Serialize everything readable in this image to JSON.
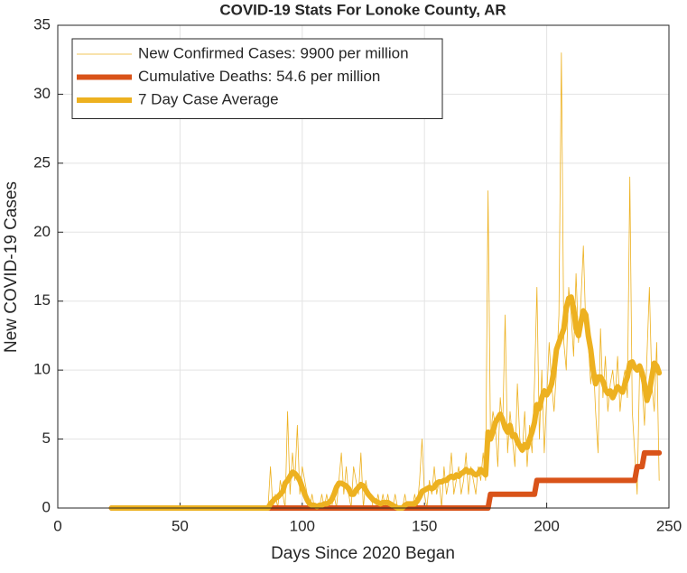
{
  "chart_data": {
    "type": "line",
    "title": "COVID-19 Stats For Lonoke County, AR",
    "xlabel": "Days Since 2020 Began",
    "ylabel": "New COVID-19 Cases",
    "xlim": [
      0,
      250
    ],
    "xticks": [
      0,
      50,
      100,
      150,
      200,
      250
    ],
    "ylim": [
      0,
      35
    ],
    "yticks": [
      0,
      5,
      10,
      15,
      20,
      25,
      30,
      35
    ],
    "grid": true,
    "legend": "upper-left",
    "x": [
      22,
      23,
      24,
      25,
      26,
      27,
      28,
      29,
      30,
      31,
      32,
      33,
      34,
      35,
      36,
      37,
      38,
      39,
      40,
      41,
      42,
      43,
      44,
      45,
      46,
      47,
      48,
      49,
      50,
      51,
      52,
      53,
      54,
      55,
      56,
      57,
      58,
      59,
      60,
      61,
      62,
      63,
      64,
      65,
      66,
      67,
      68,
      69,
      70,
      71,
      72,
      73,
      74,
      75,
      76,
      77,
      78,
      79,
      80,
      81,
      82,
      83,
      84,
      85,
      86,
      87,
      88,
      89,
      90,
      91,
      92,
      93,
      94,
      95,
      96,
      97,
      98,
      99,
      100,
      101,
      102,
      103,
      104,
      105,
      106,
      107,
      108,
      109,
      110,
      111,
      112,
      113,
      114,
      115,
      116,
      117,
      118,
      119,
      120,
      121,
      122,
      123,
      124,
      125,
      126,
      127,
      128,
      129,
      130,
      131,
      132,
      133,
      134,
      135,
      136,
      137,
      138,
      139,
      140,
      141,
      142,
      143,
      144,
      145,
      146,
      147,
      148,
      149,
      150,
      151,
      152,
      153,
      154,
      155,
      156,
      157,
      158,
      159,
      160,
      161,
      162,
      163,
      164,
      165,
      166,
      167,
      168,
      169,
      170,
      171,
      172,
      173,
      174,
      175,
      176,
      177,
      178,
      179,
      180,
      181,
      182,
      183,
      184,
      185,
      186,
      187,
      188,
      189,
      190,
      191,
      192,
      193,
      194,
      195,
      196,
      197,
      198,
      199,
      200,
      201,
      202,
      203,
      204,
      205,
      206,
      207,
      208,
      209,
      210,
      211,
      212,
      213,
      214,
      215,
      216,
      217,
      218,
      219,
      220,
      221,
      222,
      223,
      224,
      225,
      226,
      227,
      228,
      229,
      230,
      231,
      232,
      233,
      234,
      235,
      236,
      237,
      238,
      239,
      240,
      241,
      242,
      243,
      244,
      245,
      246
    ],
    "series": [
      {
        "name": "New Confirmed Cases: 9900 per million",
        "color": "#EDB120",
        "width": 0.8,
        "values": [
          0,
          0,
          0,
          0,
          0,
          0,
          0,
          0,
          0,
          0,
          0,
          0,
          0,
          0,
          0,
          0,
          0,
          0,
          0,
          0,
          0,
          0,
          0,
          0,
          0,
          0,
          0,
          0,
          0,
          0,
          0,
          0,
          0,
          0,
          0,
          0,
          0,
          0,
          0,
          0,
          0,
          0,
          0,
          0,
          0,
          0,
          0,
          0,
          0,
          0,
          0,
          0,
          0,
          0,
          0,
          0,
          0,
          0,
          0,
          0,
          0,
          0,
          0,
          0,
          0,
          3,
          0,
          1,
          0,
          2,
          1,
          0,
          7,
          1,
          4,
          2,
          6,
          1,
          3,
          2,
          1,
          0,
          1,
          0,
          0,
          0,
          1,
          0,
          1,
          0,
          0,
          1,
          0,
          2,
          4,
          1,
          3,
          1,
          0,
          3,
          2,
          1,
          4,
          0,
          2,
          1,
          1,
          0,
          0,
          1,
          0,
          1,
          0,
          1,
          0,
          0,
          1,
          0,
          0,
          0,
          1,
          0,
          0,
          0,
          1,
          0,
          2,
          5,
          1,
          0,
          2,
          1,
          3,
          1,
          2,
          0,
          3,
          1,
          2,
          4,
          1,
          2,
          3,
          1,
          2,
          4,
          1,
          3,
          2,
          1,
          3,
          2,
          4,
          2,
          23,
          5,
          7,
          6,
          3,
          8,
          6,
          14,
          4,
          7,
          5,
          3,
          9,
          5,
          4,
          7,
          3,
          6,
          4,
          9,
          16,
          5,
          10,
          4,
          8,
          12,
          9,
          7,
          10,
          14,
          33,
          12,
          10,
          16,
          14,
          11,
          17,
          12,
          15,
          19,
          13,
          12,
          9,
          11,
          7,
          4,
          13,
          8,
          11,
          7,
          9,
          10,
          8,
          11,
          7,
          9,
          10,
          8,
          24,
          7,
          4,
          1,
          10,
          9,
          6,
          11,
          16,
          9,
          7,
          12,
          2
        ]
      },
      {
        "name": "Cumulative Deaths: 54.6 per million",
        "color": "#D95319",
        "width": 6,
        "values": [
          0,
          0,
          0,
          0,
          0,
          0,
          0,
          0,
          0,
          0,
          0,
          0,
          0,
          0,
          0,
          0,
          0,
          0,
          0,
          0,
          0,
          0,
          0,
          0,
          0,
          0,
          0,
          0,
          0,
          0,
          0,
          0,
          0,
          0,
          0,
          0,
          0,
          0,
          0,
          0,
          0,
          0,
          0,
          0,
          0,
          0,
          0,
          0,
          0,
          0,
          0,
          0,
          0,
          0,
          0,
          0,
          0,
          0,
          0,
          0,
          0,
          0,
          0,
          0,
          0,
          0,
          0,
          0,
          0,
          0,
          0,
          0,
          0,
          0,
          0,
          0,
          0,
          0,
          0,
          0,
          0,
          0,
          0,
          0,
          0,
          0,
          0,
          0,
          0,
          0,
          0,
          0,
          0,
          0,
          0,
          0,
          0,
          0,
          0,
          0,
          0,
          0,
          0,
          0,
          0,
          0,
          0,
          0,
          0,
          0,
          0,
          0,
          0,
          0,
          0,
          0,
          0,
          0,
          0,
          0,
          0,
          0,
          0,
          0,
          0,
          0,
          0,
          0,
          0,
          0,
          0,
          0,
          0,
          0,
          0,
          0,
          0,
          0,
          0,
          0,
          0,
          0,
          0,
          0,
          0,
          0,
          0,
          0,
          0,
          0,
          0,
          0,
          0,
          0,
          0,
          1,
          1,
          1,
          1,
          1,
          1,
          1,
          1,
          1,
          1,
          1,
          1,
          1,
          1,
          1,
          1,
          1,
          1,
          1,
          2,
          2,
          2,
          2,
          2,
          2,
          2,
          2,
          2,
          2,
          2,
          2,
          2,
          2,
          2,
          2,
          2,
          2,
          2,
          2,
          2,
          2,
          2,
          2,
          2,
          2,
          2,
          2,
          2,
          2,
          2,
          2,
          2,
          2,
          2,
          2,
          2,
          2,
          2,
          2,
          2,
          3,
          3,
          3,
          4,
          4,
          4,
          4,
          4,
          4,
          4
        ]
      },
      {
        "name": "7 Day Case Average",
        "color": "#EDB120",
        "width": 6,
        "values": [
          0,
          0,
          0,
          0,
          0,
          0,
          0,
          0,
          0,
          0,
          0,
          0,
          0,
          0,
          0,
          0,
          0,
          0,
          0,
          0,
          0,
          0,
          0,
          0,
          0,
          0,
          0,
          0,
          0,
          0,
          0,
          0,
          0,
          0,
          0,
          0,
          0,
          0,
          0,
          0,
          0,
          0,
          0,
          0,
          0,
          0,
          0,
          0,
          0,
          0,
          0,
          0,
          0,
          0,
          0,
          0,
          0,
          0,
          0,
          0,
          0,
          0,
          0,
          0,
          0,
          0.3,
          0.5,
          0.7,
          0.8,
          1,
          1.2,
          1.8,
          2,
          2.3,
          2.6,
          2.5,
          2.3,
          2,
          1.5,
          1,
          0.6,
          0.3,
          0.2,
          0.2,
          0.1,
          0.2,
          0.2,
          0.3,
          0.3,
          0.4,
          0.6,
          1,
          1.5,
          1.8,
          1.8,
          1.7,
          1.6,
          1.4,
          1,
          1,
          1.3,
          1.5,
          1.7,
          1.6,
          1.3,
          1,
          0.8,
          0.6,
          0.5,
          0.4,
          0.3,
          0.4,
          0.4,
          0.4,
          0.3,
          0.2,
          0.1,
          0,
          0,
          0,
          0.2,
          0.3,
          0.3,
          0.3,
          0.3,
          0.5,
          0.8,
          1.2,
          1.3,
          1.4,
          1.5,
          1.4,
          1.5,
          1.8,
          1.9,
          1.9,
          2,
          2,
          2.2,
          2.3,
          2.2,
          2.4,
          2.3,
          2.5,
          2.6,
          2.8,
          2.6,
          2.7,
          2.5,
          2.4,
          2.5,
          2.8,
          2.6,
          2.4,
          5.5,
          5,
          5.5,
          6.2,
          6.5,
          6.8,
          6.4,
          5.8,
          5.5,
          6,
          5.2,
          5.3,
          4.8,
          4.5,
          4.2,
          4.6,
          4.4,
          5,
          5.5,
          6.2,
          7.5,
          7.2,
          8,
          8.5,
          8.2,
          8.5,
          9,
          10,
          11.5,
          12,
          12.5,
          13,
          14.5,
          15.2,
          15.3,
          14.5,
          13,
          12.5,
          13.5,
          14.3,
          14,
          12.5,
          11.5,
          10,
          9,
          9.5,
          9.5,
          9.2,
          8.6,
          8.3,
          8.5,
          8,
          8.4,
          8.8,
          8.6,
          8.4,
          9,
          9.5,
          10.5,
          10.6,
          10.2,
          10,
          10.3,
          9.8,
          9,
          7.8,
          8.4,
          9.5,
          10.5,
          10.3,
          9.8
        ]
      }
    ]
  }
}
